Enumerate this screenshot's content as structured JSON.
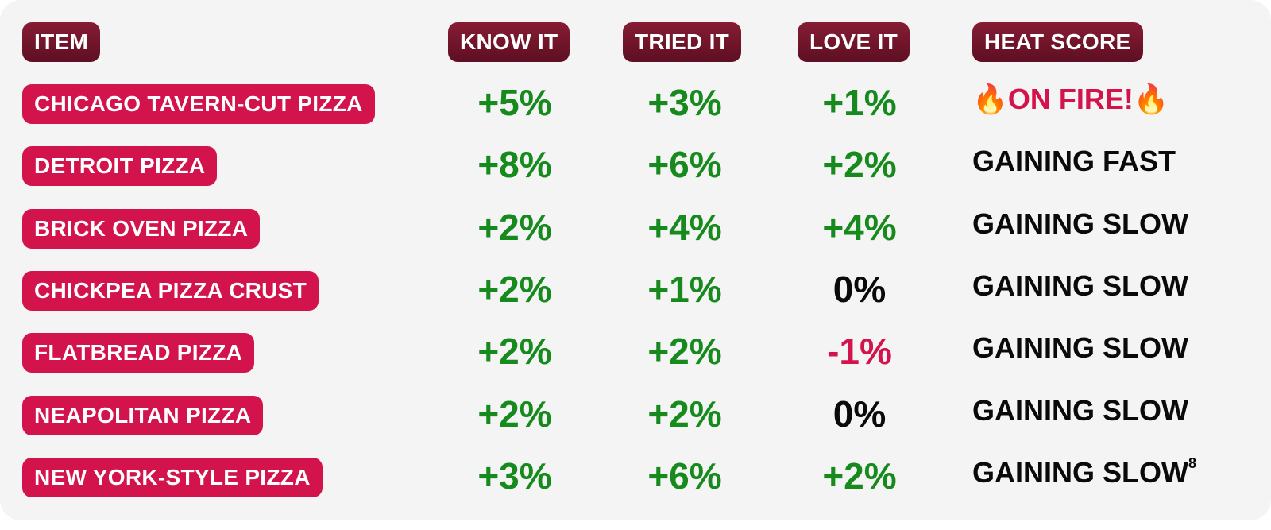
{
  "table": {
    "header": [
      "ITEM",
      "KNOW IT",
      "TRIED IT",
      "LOVE IT",
      "HEAT SCORE"
    ],
    "colors": {
      "positive": "#168a1c",
      "negative": "#d3134b",
      "zero": "#0a0a0a"
    },
    "rows": [
      {
        "item": "CHICAGO TAVERN-CUT PIZZA",
        "know": "+5%",
        "tried": "+3%",
        "love": "+1%",
        "heat": "🔥ON FIRE!🔥",
        "heat_color": "#d3134b"
      },
      {
        "item": "DETROIT PIZZA",
        "know": "+8%",
        "tried": "+6%",
        "love": "+2%",
        "heat": "GAINING FAST",
        "heat_color": "#0a0a0a"
      },
      {
        "item": "BRICK OVEN PIZZA",
        "know": "+2%",
        "tried": "+4%",
        "love": "+4%",
        "heat": "GAINING SLOW",
        "heat_color": "#0a0a0a"
      },
      {
        "item": "CHICKPEA PIZZA CRUST",
        "know": "+2%",
        "tried": "+1%",
        "love": "0%",
        "heat": "GAINING SLOW",
        "heat_color": "#0a0a0a"
      },
      {
        "item": "FLATBREAD PIZZA",
        "know": "+2%",
        "tried": "+2%",
        "love": "-1%",
        "heat": "GAINING SLOW",
        "heat_color": "#0a0a0a"
      },
      {
        "item": "NEAPOLITAN PIZZA",
        "know": "+2%",
        "tried": "+2%",
        "love": "0%",
        "heat": "GAINING SLOW",
        "heat_color": "#0a0a0a"
      },
      {
        "item": "NEW YORK-STYLE PIZZA",
        "know": "+3%",
        "tried": "+6%",
        "love": "+2%",
        "heat": "GAINING SLOW",
        "heat_color": "#0a0a0a",
        "footnote": "8"
      }
    ]
  }
}
